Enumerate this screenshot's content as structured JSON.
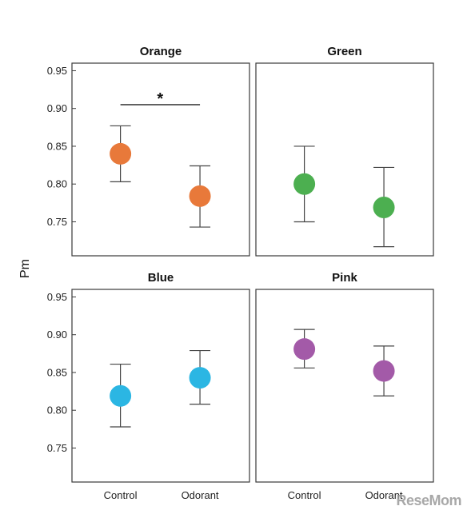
{
  "chart_data": {
    "type": "scatter",
    "ylabel": "Pm",
    "ylim": [
      0.705,
      0.96
    ],
    "yticks": [
      0.75,
      0.8,
      0.85,
      0.9,
      0.95
    ],
    "ytick_labels": [
      "0.75",
      "0.80",
      "0.85",
      "0.90",
      "0.95"
    ],
    "categories": [
      "Control",
      "Odorant"
    ],
    "panels": [
      {
        "title": "Orange",
        "color": "#E8793A",
        "points": [
          {
            "category": "Control",
            "y": 0.84,
            "err_low": 0.803,
            "err_high": 0.877
          },
          {
            "category": "Odorant",
            "y": 0.784,
            "err_low": 0.743,
            "err_high": 0.824
          }
        ],
        "significance": {
          "from": "Control",
          "to": "Odorant",
          "y": 0.905,
          "label": "*"
        }
      },
      {
        "title": "Green",
        "color": "#4CAF50",
        "points": [
          {
            "category": "Control",
            "y": 0.8,
            "err_low": 0.75,
            "err_high": 0.85
          },
          {
            "category": "Odorant",
            "y": 0.769,
            "err_low": 0.717,
            "err_high": 0.822
          }
        ]
      },
      {
        "title": "Blue",
        "color": "#2BB6E3",
        "points": [
          {
            "category": "Control",
            "y": 0.819,
            "err_low": 0.778,
            "err_high": 0.861
          },
          {
            "category": "Odorant",
            "y": 0.843,
            "err_low": 0.808,
            "err_high": 0.879
          }
        ]
      },
      {
        "title": "Pink",
        "color": "#A35AA8",
        "points": [
          {
            "category": "Control",
            "y": 0.881,
            "err_low": 0.856,
            "err_high": 0.907
          },
          {
            "category": "Odorant",
            "y": 0.852,
            "err_low": 0.819,
            "err_high": 0.885
          }
        ]
      }
    ]
  },
  "watermark": "ReseMom"
}
